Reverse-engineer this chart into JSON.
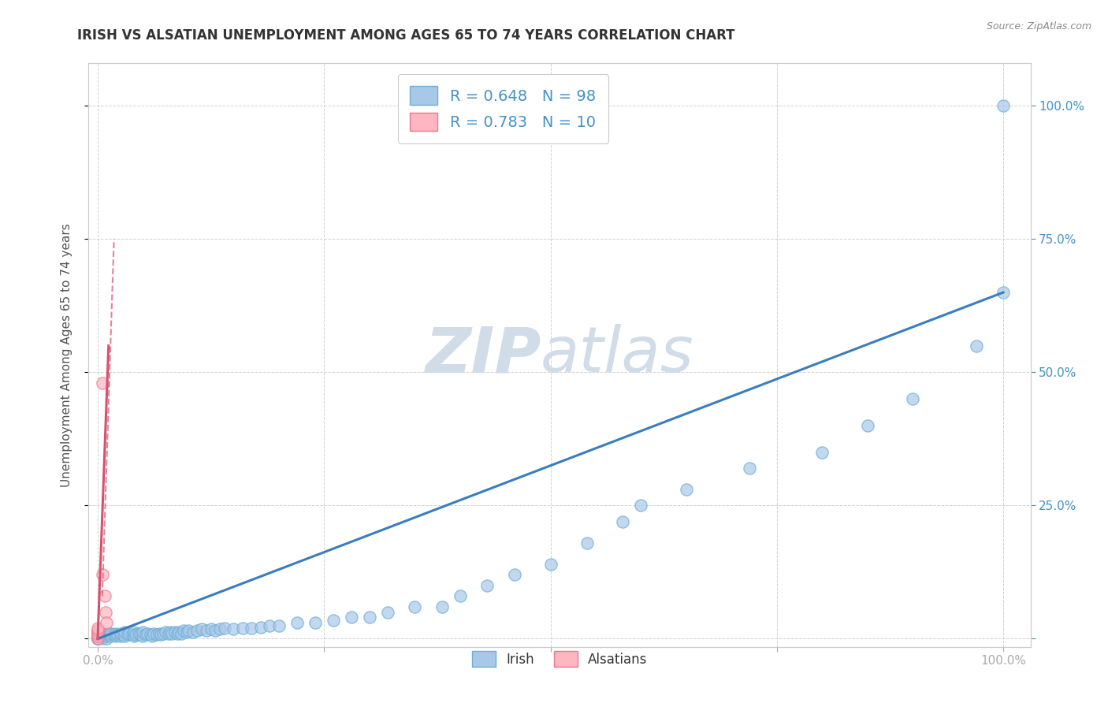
{
  "title": "IRISH VS ALSATIAN UNEMPLOYMENT AMONG AGES 65 TO 74 YEARS CORRELATION CHART",
  "source": "Source: ZipAtlas.com",
  "ylabel": "Unemployment Among Ages 65 to 74 years",
  "irish_R": 0.648,
  "irish_N": 98,
  "alsatian_R": 0.783,
  "alsatian_N": 10,
  "irish_color": "#a8c8e8",
  "irish_edge_color": "#6baed6",
  "alsatian_color": "#ffb6c1",
  "alsatian_edge_color": "#e87a8a",
  "irish_line_color": "#3a7dbf",
  "alsatian_line_color": "#d94f6e",
  "watermark_color": "#d0dce8",
  "background_color": "#ffffff",
  "grid_color": "#cccccc",
  "right_axis_color": "#4292c6",
  "irish_scatter_x": [
    0.0,
    0.0,
    0.0,
    0.0,
    0.0,
    0.0,
    0.0,
    0.0,
    0.0,
    0.0,
    0.005,
    0.005,
    0.005,
    0.007,
    0.008,
    0.01,
    0.01,
    0.01,
    0.012,
    0.013,
    0.015,
    0.015,
    0.018,
    0.02,
    0.02,
    0.022,
    0.025,
    0.025,
    0.028,
    0.03,
    0.03,
    0.033,
    0.035,
    0.038,
    0.04,
    0.04,
    0.042,
    0.045,
    0.047,
    0.05,
    0.05,
    0.053,
    0.055,
    0.058,
    0.06,
    0.062,
    0.065,
    0.068,
    0.07,
    0.072,
    0.075,
    0.078,
    0.08,
    0.082,
    0.085,
    0.088,
    0.09,
    0.092,
    0.095,
    0.098,
    0.1,
    0.105,
    0.11,
    0.115,
    0.12,
    0.125,
    0.13,
    0.135,
    0.14,
    0.15,
    0.16,
    0.17,
    0.18,
    0.19,
    0.2,
    0.22,
    0.24,
    0.26,
    0.28,
    0.3,
    0.32,
    0.35,
    0.38,
    0.4,
    0.43,
    0.46,
    0.5,
    0.54,
    0.58,
    0.6,
    0.65,
    0.72,
    0.8,
    0.85,
    0.9,
    0.97,
    1.0,
    1.0
  ],
  "irish_scatter_y": [
    0.0,
    0.0,
    0.0,
    0.0,
    0.005,
    0.007,
    0.009,
    0.01,
    0.012,
    0.015,
    0.0,
    0.005,
    0.01,
    0.005,
    0.008,
    0.0,
    0.005,
    0.01,
    0.007,
    0.01,
    0.005,
    0.01,
    0.008,
    0.005,
    0.01,
    0.008,
    0.005,
    0.01,
    0.008,
    0.005,
    0.012,
    0.008,
    0.01,
    0.008,
    0.005,
    0.012,
    0.008,
    0.01,
    0.008,
    0.005,
    0.012,
    0.008,
    0.01,
    0.008,
    0.005,
    0.01,
    0.008,
    0.01,
    0.008,
    0.01,
    0.012,
    0.01,
    0.012,
    0.01,
    0.012,
    0.01,
    0.012,
    0.01,
    0.015,
    0.012,
    0.015,
    0.012,
    0.015,
    0.018,
    0.015,
    0.018,
    0.015,
    0.018,
    0.02,
    0.018,
    0.02,
    0.02,
    0.022,
    0.025,
    0.025,
    0.03,
    0.03,
    0.035,
    0.04,
    0.04,
    0.05,
    0.06,
    0.06,
    0.08,
    0.1,
    0.12,
    0.14,
    0.18,
    0.22,
    0.25,
    0.28,
    0.32,
    0.35,
    0.4,
    0.45,
    0.55,
    0.65,
    1.0
  ],
  "alsatian_scatter_x": [
    0.0,
    0.0,
    0.0,
    0.0,
    0.0,
    0.005,
    0.005,
    0.008,
    0.009,
    0.01
  ],
  "alsatian_scatter_y": [
    0.0,
    0.005,
    0.01,
    0.015,
    0.02,
    0.48,
    0.12,
    0.08,
    0.05,
    0.03
  ],
  "irish_trend": [
    0.0,
    0.0,
    1.0,
    0.65
  ],
  "alsatian_trend_solid": [
    0.0,
    0.0,
    0.012,
    0.55
  ],
  "alsatian_trend_dashed": [
    0.005,
    0.08,
    0.018,
    0.75
  ]
}
